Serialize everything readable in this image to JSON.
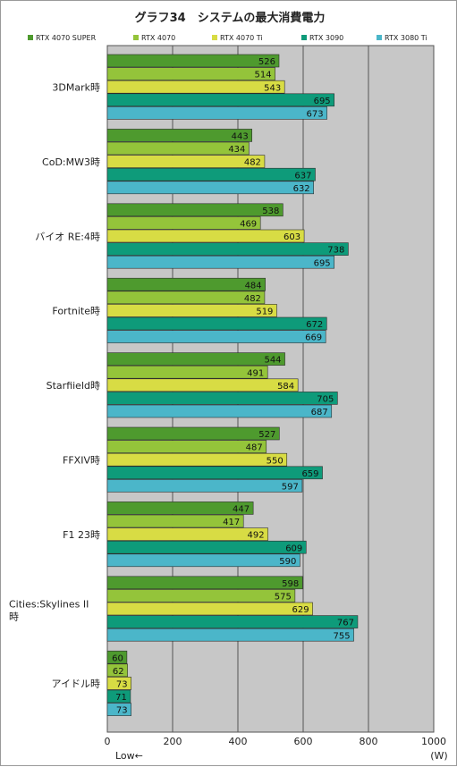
{
  "chart_data": {
    "type": "bar",
    "orientation": "horizontal",
    "title": "グラフ34　システムの最大消費電力",
    "xlim": [
      0,
      1000
    ],
    "xticks": [
      0,
      200,
      400,
      600,
      800,
      1000
    ],
    "axis_note_left": "Low←",
    "axis_unit": "(W)",
    "grid": true,
    "legend": "top",
    "categories": [
      "3DMark時",
      "CoD:MW3時",
      "バイオ RE:4時",
      "Fortnite時",
      "Starfiield時",
      "FFXIV時",
      "F1 23時",
      [
        "Cities:Skylines II",
        "時"
      ],
      "アイドル時"
    ],
    "series": [
      {
        "name": "RTX 4070 SUPER",
        "color": "#4e9a2e",
        "values": [
          526,
          443,
          538,
          484,
          544,
          527,
          447,
          598,
          60
        ]
      },
      {
        "name": "RTX 4070",
        "color": "#94c43a",
        "values": [
          514,
          434,
          469,
          482,
          491,
          487,
          417,
          575,
          62
        ]
      },
      {
        "name": "RTX 4070 Ti",
        "color": "#d8dc44",
        "values": [
          543,
          482,
          603,
          519,
          584,
          550,
          492,
          629,
          73
        ]
      },
      {
        "name": "RTX 3090",
        "color": "#0e9b7a",
        "values": [
          695,
          637,
          738,
          672,
          705,
          659,
          609,
          767,
          71
        ]
      },
      {
        "name": "RTX 3080 Ti",
        "color": "#4bb6c9",
        "values": [
          673,
          632,
          695,
          669,
          687,
          597,
          590,
          755,
          73
        ]
      }
    ]
  }
}
